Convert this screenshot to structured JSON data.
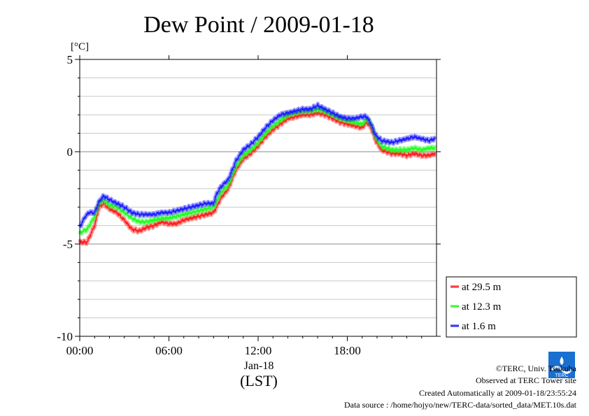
{
  "chart_data": {
    "type": "line",
    "title": "Dew Point / 2009-01-18",
    "ylabel": "[°C]",
    "xlabel_date": "Jan-18",
    "xlabel_unit": "(LST)",
    "ylim": [
      -10,
      5
    ],
    "yticks": [
      5,
      0,
      -5,
      -10
    ],
    "ytick_labels": [
      "5",
      "0",
      "-5",
      "-10"
    ],
    "xlim": [
      0,
      24
    ],
    "xticks": [
      0,
      6,
      12,
      18
    ],
    "xtick_labels": [
      "00:00",
      "06:00",
      "12:00",
      "18:00"
    ],
    "grid": true,
    "legend_position": "right",
    "series": [
      {
        "name": "at 29.5 m",
        "color": "#ff2020",
        "x": [
          0,
          0.5,
          1,
          1.3,
          1.6,
          2,
          2.5,
          3,
          3.5,
          4,
          4.5,
          5,
          5.5,
          6,
          6.5,
          7,
          7.5,
          8,
          8.5,
          9,
          9.2,
          9.5,
          10,
          10.5,
          11,
          11.5,
          12,
          12.5,
          13,
          13.5,
          14,
          14.5,
          15,
          15.5,
          16,
          16.5,
          17,
          17.5,
          18,
          18.5,
          19,
          19.3,
          19.6,
          19.9,
          20.3,
          21,
          21.5,
          22,
          22.5,
          23,
          23.5,
          23.9
        ],
        "values": [
          -4.9,
          -4.9,
          -4.0,
          -3.0,
          -2.8,
          -3.1,
          -3.3,
          -3.7,
          -4.2,
          -4.3,
          -4.1,
          -4.0,
          -3.8,
          -3.9,
          -3.9,
          -3.7,
          -3.6,
          -3.5,
          -3.4,
          -3.3,
          -3.0,
          -2.5,
          -2.0,
          -1.0,
          -0.4,
          -0.1,
          0.3,
          0.8,
          1.2,
          1.5,
          1.8,
          1.9,
          2.0,
          2.0,
          2.1,
          2.0,
          1.8,
          1.6,
          1.5,
          1.4,
          1.3,
          1.6,
          1.3,
          0.6,
          0.1,
          -0.1,
          -0.1,
          -0.2,
          -0.1,
          -0.2,
          -0.2,
          -0.1
        ]
      },
      {
        "name": "at 12.3 m",
        "color": "#20ff20",
        "x": [
          0,
          0.5,
          1,
          1.3,
          1.6,
          2,
          2.5,
          3,
          3.5,
          4,
          4.5,
          5,
          5.5,
          6,
          6.5,
          7,
          7.5,
          8,
          8.5,
          9,
          9.2,
          9.5,
          10,
          10.5,
          11,
          11.5,
          12,
          12.5,
          13,
          13.5,
          14,
          14.5,
          15,
          15.5,
          16,
          16.5,
          17,
          17.5,
          18,
          18.5,
          19,
          19.3,
          19.6,
          19.9,
          20.3,
          21,
          21.5,
          22,
          22.5,
          23,
          23.5,
          23.9
        ],
        "values": [
          -4.4,
          -4.2,
          -3.5,
          -2.8,
          -2.6,
          -2.9,
          -3.0,
          -3.3,
          -3.6,
          -3.8,
          -3.8,
          -3.7,
          -3.6,
          -3.6,
          -3.5,
          -3.4,
          -3.3,
          -3.2,
          -3.1,
          -3.0,
          -2.7,
          -2.2,
          -1.8,
          -0.8,
          -0.2,
          0.1,
          0.5,
          1.0,
          1.4,
          1.7,
          2.0,
          2.1,
          2.2,
          2.2,
          2.3,
          2.2,
          2.0,
          1.8,
          1.7,
          1.6,
          1.5,
          1.8,
          1.5,
          0.8,
          0.3,
          0.1,
          0.1,
          0.1,
          0.2,
          0.1,
          0.2,
          0.2
        ]
      },
      {
        "name": "at 1.6 m",
        "color": "#2020ff",
        "x": [
          0,
          0.3,
          0.6,
          1,
          1.3,
          1.6,
          2,
          2.5,
          3,
          3.5,
          4,
          4.5,
          5,
          5.5,
          6,
          6.5,
          7,
          7.5,
          8,
          8.5,
          9,
          9.2,
          9.5,
          10,
          10.5,
          11,
          11.5,
          12,
          12.5,
          13,
          13.5,
          14,
          14.5,
          15,
          15.5,
          16,
          16.5,
          17,
          17.5,
          18,
          18.5,
          19,
          19.3,
          19.6,
          19.9,
          20.3,
          21,
          21.5,
          22,
          22.5,
          23,
          23.5,
          23.9
        ],
        "values": [
          -4.1,
          -3.6,
          -3.3,
          -3.3,
          -2.7,
          -2.4,
          -2.6,
          -2.8,
          -3.0,
          -3.3,
          -3.4,
          -3.4,
          -3.4,
          -3.3,
          -3.3,
          -3.2,
          -3.1,
          -3.0,
          -2.9,
          -2.8,
          -2.8,
          -2.3,
          -1.9,
          -1.5,
          -0.5,
          0.1,
          0.4,
          0.8,
          1.3,
          1.7,
          2.0,
          2.1,
          2.2,
          2.3,
          2.3,
          2.5,
          2.3,
          2.1,
          1.9,
          1.8,
          1.8,
          1.9,
          1.9,
          1.5,
          0.9,
          0.6,
          0.5,
          0.6,
          0.7,
          0.8,
          0.7,
          0.6,
          0.7
        ]
      }
    ]
  },
  "footer": {
    "copyright": "©TERC, Univ. Tsukuba",
    "observed": "Observed at TERC Tower site",
    "created": "Created Automatically at 2009-01-18/23:55:24",
    "source": "Data source : /home/hojyo/new/TERC-data/sorted_data/MET.10s.dat"
  },
  "logo": {
    "text": "TERC",
    "color": "#1a6fd0"
  }
}
